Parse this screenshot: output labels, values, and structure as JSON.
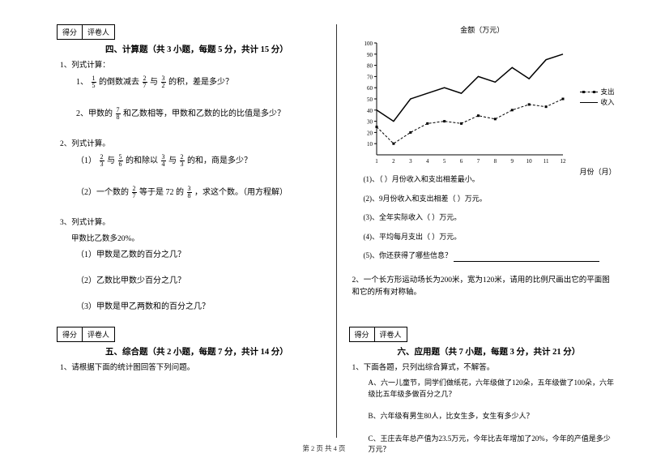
{
  "left": {
    "scoreBox": {
      "a": "得分",
      "b": "评卷人"
    },
    "section4": {
      "title": "四、计算题（共 3 小题，每题 5 分，共计 15 分）",
      "q1": "1、列式计算：",
      "q1_1_pre": "1、",
      "q1_1_mid": "的倒数减去",
      "q1_1_mid2": "与",
      "q1_1_end": "的积，差是多少？",
      "q1_2_pre": "2、甲数的",
      "q1_2_mid": "和乙数相等，甲数和乙数的比的比值是多少？",
      "q2": "2、列式计算。",
      "q2_1_pre": "（1）",
      "q2_1_a": "与",
      "q2_1_b": "的和除以",
      "q2_1_c": "与",
      "q2_1_d": "的和，商是多少？",
      "q2_2_pre": "（2）一个数的",
      "q2_2_mid": "等于是 72 的",
      "q2_2_end": "，求这个数。（用方程解）",
      "q3": "3、列式计算。",
      "q3_desc": "甲数比乙数多20%。",
      "q3_1": "（1）甲数是乙数的百分之几？",
      "q3_2": "（2）乙数比甲数少百分之几？",
      "q3_3": "（3）甲数是甲乙两数和的百分之几？"
    },
    "section5": {
      "title": "五、综合题（共 2 小题，每题 7 分，共计 14 分）",
      "q1": "1、请根据下面的统计图回答下列问题。"
    },
    "fractions": {
      "f15": {
        "n": "1",
        "d": "5"
      },
      "f27": {
        "n": "2",
        "d": "7"
      },
      "f32": {
        "n": "3",
        "d": "2"
      },
      "f78": {
        "n": "7",
        "d": "8"
      },
      "f23": {
        "n": "2",
        "d": "3"
      },
      "f56": {
        "n": "5",
        "d": "6"
      },
      "f34": {
        "n": "3",
        "d": "4"
      },
      "f38": {
        "n": "3",
        "d": "8"
      }
    }
  },
  "right": {
    "chart": {
      "title": "金额（万元）",
      "yticks": [
        "100",
        "90",
        "80",
        "70",
        "60",
        "50",
        "40",
        "30",
        "20",
        "10"
      ],
      "xticks": [
        "1",
        "2",
        "3",
        "4",
        "5",
        "6",
        "7",
        "8",
        "9",
        "10",
        "11",
        "12"
      ],
      "xlabel": "月份（月）",
      "legend": {
        "a": "支出",
        "b": "收入"
      },
      "income": [
        40,
        30,
        50,
        55,
        60,
        55,
        70,
        65,
        78,
        68,
        85,
        90
      ],
      "expense": [
        25,
        10,
        20,
        28,
        30,
        28,
        35,
        32,
        40,
        45,
        43,
        50
      ],
      "colors": {
        "axis": "#000000",
        "line": "#000000"
      },
      "ylim": [
        0,
        100
      ],
      "xlim": [
        1,
        12
      ]
    },
    "chartQ": {
      "q1": "(1)、（  ）月份收入和支出相差最小。",
      "q2": "(2)、9月份收入和支出相差（  ）万元。",
      "q3": "(3)、全年实际收入（  ）万元。",
      "q4": "(4)、平均每月支出（  ）万元。",
      "q5": "(5)、你还获得了哪些信息？"
    },
    "q2": "2、一个长方形运动场长为200米，宽为120米，请用的比例尺画出它的平面图和它的所有对称轴。",
    "scoreBox": {
      "a": "得分",
      "b": "评卷人"
    },
    "section6": {
      "title": "六、应用题（共 7 小题，每题 3 分，共计 21 分）",
      "q1": "1、下面各题，只列出综合算式，不解答。",
      "qA": "A、六一儿童节，同学们做纸花，六年级做了120朵，五年级做了100朵，六年级比五年级多做百分之几？",
      "qB": "B、六年级有男生80人，比女生多，女生有多少人？",
      "qC": "C、王庄去年总产值为23.5万元，今年比去年增加了20%，今年的产值是多少万元？"
    }
  },
  "footer": "第 2 页 共 4 页"
}
